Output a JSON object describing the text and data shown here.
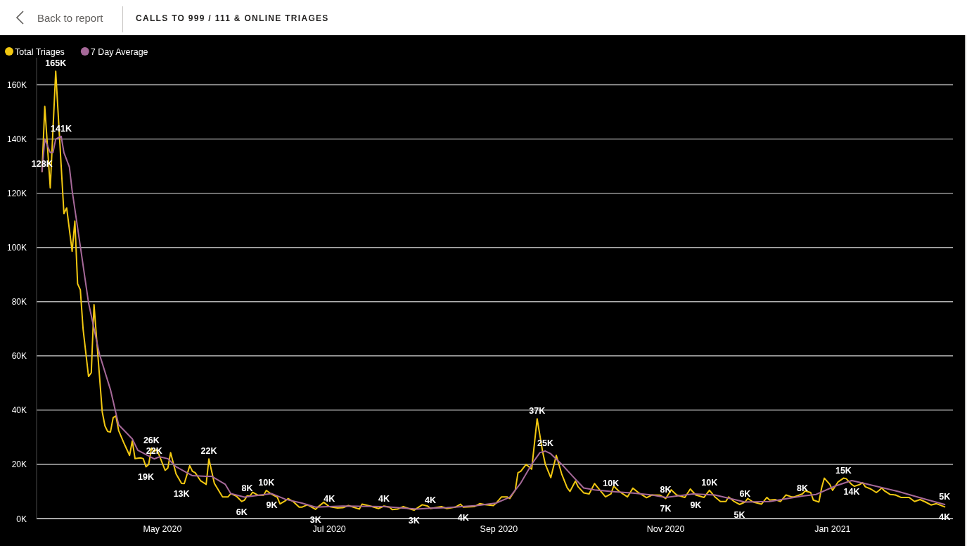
{
  "chart_data": {
    "type": "line",
    "title": "CALLS TO 999 / 111 & ONLINE TRIAGES",
    "annotations": [
      "Back to report",
      {
        "text": "165K",
        "x": "2020-03-23",
        "y": 165000
      },
      {
        "text": "141K",
        "x": "2020-03-25",
        "y": 141000
      },
      {
        "text": "128K",
        "x": "2020-03-18",
        "y": 128000
      },
      {
        "text": "26K",
        "x": "2020-04-27",
        "y": 26000
      },
      {
        "text": "22K",
        "x": "2020-04-28",
        "y": 22000
      },
      {
        "text": "19K",
        "x": "2020-04-25",
        "y": 19100
      },
      {
        "text": "13K",
        "x": "2020-05-08",
        "y": 13000
      },
      {
        "text": "22K",
        "x": "2020-05-18",
        "y": 22000
      },
      {
        "text": "6K",
        "x": "2020-05-30",
        "y": 6300
      },
      {
        "text": "8K",
        "x": "2020-06-01",
        "y": 8400
      },
      {
        "text": "10K",
        "x": "2020-06-08",
        "y": 10400
      },
      {
        "text": "9K",
        "x": "2020-06-10",
        "y": 8900
      },
      {
        "text": "3K",
        "x": "2020-06-26",
        "y": 3400
      },
      {
        "text": "4K",
        "x": "2020-07-01",
        "y": 4400
      },
      {
        "text": "4K",
        "x": "2020-07-21",
        "y": 4400
      },
      {
        "text": "3K",
        "x": "2020-08-01",
        "y": 3100
      },
      {
        "text": "4K",
        "x": "2020-08-07",
        "y": 3800
      },
      {
        "text": "4K",
        "x": "2020-08-19",
        "y": 4200
      },
      {
        "text": "37K",
        "x": "2020-09-15",
        "y": 36800
      },
      {
        "text": "25K",
        "x": "2020-09-18",
        "y": 24900
      },
      {
        "text": "10K",
        "x": "2020-10-12",
        "y": 10000
      },
      {
        "text": "8K",
        "x": "2020-11-01",
        "y": 7800
      },
      {
        "text": "7K",
        "x": "2020-11-01",
        "y": 7400
      },
      {
        "text": "9K",
        "x": "2020-11-12",
        "y": 8700
      },
      {
        "text": "10K",
        "x": "2020-11-17",
        "y": 10400
      },
      {
        "text": "5K",
        "x": "2020-11-28",
        "y": 5200
      },
      {
        "text": "6K",
        "x": "2020-11-30",
        "y": 6100
      },
      {
        "text": "8K",
        "x": "2020-12-21",
        "y": 8300
      },
      {
        "text": "15K",
        "x": "2021-01-05",
        "y": 14900
      },
      {
        "text": "14K",
        "x": "2021-01-08",
        "y": 13800
      },
      {
        "text": "4K",
        "x": "2021-02-11",
        "y": 4300
      },
      {
        "text": "5K",
        "x": "2021-02-11",
        "y": 5200
      }
    ],
    "xlim": [
      "2020-03-16",
      "2021-02-14"
    ],
    "xticks": [
      {
        "value": "2020-05-01",
        "label": "May 2020"
      },
      {
        "value": "2020-07-01",
        "label": "Jul 2020"
      },
      {
        "value": "2020-09-01",
        "label": "Sep 2020"
      },
      {
        "value": "2020-11-01",
        "label": "Nov 2020"
      },
      {
        "value": "2021-01-01",
        "label": "Jan 2021"
      }
    ],
    "ylim": [
      0,
      170000
    ],
    "yticks": [
      {
        "value": 0,
        "label": "0K"
      },
      {
        "value": 20000,
        "label": "20K"
      },
      {
        "value": 40000,
        "label": "40K"
      },
      {
        "value": 60000,
        "label": "60K"
      },
      {
        "value": 80000,
        "label": "80K"
      },
      {
        "value": 100000,
        "label": "100K"
      },
      {
        "value": 120000,
        "label": "120K"
      },
      {
        "value": 140000,
        "label": "140K"
      },
      {
        "value": 160000,
        "label": "160K"
      }
    ],
    "grid": "y",
    "legend": "top left",
    "marker": "none",
    "line_style": "solid",
    "series": [
      {
        "name": "Total Triages",
        "color": "#f2c811",
        "x": [
          "2020-03-18",
          "2020-03-19",
          "2020-03-21",
          "2020-03-23",
          "2020-03-25",
          "2020-03-26",
          "2020-03-27",
          "2020-03-29",
          "2020-03-30",
          "2020-03-31",
          "2020-04-01",
          "2020-04-02",
          "2020-04-04",
          "2020-04-05",
          "2020-04-06",
          "2020-04-09",
          "2020-04-10",
          "2020-04-11",
          "2020-04-12",
          "2020-04-13",
          "2020-04-14",
          "2020-04-15",
          "2020-04-17",
          "2020-04-19",
          "2020-04-20",
          "2020-04-21",
          "2020-04-23",
          "2020-04-24",
          "2020-04-25",
          "2020-04-26",
          "2020-04-27",
          "2020-04-28",
          "2020-04-29",
          "2020-05-02",
          "2020-05-03",
          "2020-05-04",
          "2020-05-06",
          "2020-05-08",
          "2020-05-09",
          "2020-05-11",
          "2020-05-12",
          "2020-05-13",
          "2020-05-15",
          "2020-05-17",
          "2020-05-18",
          "2020-05-20",
          "2020-05-23",
          "2020-05-25",
          "2020-05-26",
          "2020-05-28",
          "2020-05-30",
          "2020-05-31",
          "2020-06-01",
          "2020-06-02",
          "2020-06-03",
          "2020-06-05",
          "2020-06-07",
          "2020-06-08",
          "2020-06-10",
          "2020-06-12",
          "2020-06-13",
          "2020-06-15",
          "2020-06-16",
          "2020-06-18",
          "2020-06-20",
          "2020-06-21",
          "2020-06-23",
          "2020-06-26",
          "2020-06-27",
          "2020-06-29",
          "2020-07-01",
          "2020-07-04",
          "2020-07-06",
          "2020-07-08",
          "2020-07-12",
          "2020-07-13",
          "2020-07-16",
          "2020-07-19",
          "2020-07-21",
          "2020-07-23",
          "2020-07-24",
          "2020-07-26",
          "2020-07-28",
          "2020-07-30",
          "2020-08-01",
          "2020-08-04",
          "2020-08-06",
          "2020-08-07",
          "2020-08-11",
          "2020-08-13",
          "2020-08-16",
          "2020-08-18",
          "2020-08-19",
          "2020-08-23",
          "2020-08-25",
          "2020-08-27",
          "2020-08-30",
          "2020-08-31",
          "2020-09-02",
          "2020-09-04",
          "2020-09-05",
          "2020-09-07",
          "2020-09-08",
          "2020-09-09",
          "2020-09-11",
          "2020-09-12",
          "2020-09-13",
          "2020-09-15",
          "2020-09-17",
          "2020-09-18",
          "2020-09-20",
          "2020-09-22",
          "2020-09-24",
          "2020-09-26",
          "2020-09-27",
          "2020-09-29",
          "2020-09-30",
          "2020-10-02",
          "2020-10-04",
          "2020-10-06",
          "2020-10-08",
          "2020-10-10",
          "2020-10-12",
          "2020-10-13",
          "2020-10-15",
          "2020-10-18",
          "2020-10-20",
          "2020-10-22",
          "2020-10-25",
          "2020-10-27",
          "2020-10-30",
          "2020-11-01",
          "2020-11-03",
          "2020-11-05",
          "2020-11-08",
          "2020-11-10",
          "2020-11-12",
          "2020-11-15",
          "2020-11-17",
          "2020-11-19",
          "2020-11-21",
          "2020-11-23",
          "2020-11-24",
          "2020-11-26",
          "2020-11-28",
          "2020-11-30",
          "2020-12-01",
          "2020-12-03",
          "2020-12-06",
          "2020-12-08",
          "2020-12-09",
          "2020-12-11",
          "2020-12-13",
          "2020-12-15",
          "2020-12-17",
          "2020-12-18",
          "2020-12-21",
          "2020-12-22",
          "2020-12-24",
          "2020-12-25",
          "2020-12-27",
          "2020-12-28",
          "2020-12-29",
          "2020-12-31",
          "2021-01-01",
          "2021-01-03",
          "2021-01-05",
          "2021-01-06",
          "2021-01-08",
          "2021-01-09",
          "2021-01-11",
          "2021-01-12",
          "2021-01-13",
          "2021-01-15",
          "2021-01-17",
          "2021-01-18",
          "2021-01-19",
          "2021-01-20",
          "2021-01-22",
          "2021-01-24",
          "2021-01-26",
          "2021-01-29",
          "2021-01-31",
          "2021-02-02",
          "2021-02-04",
          "2021-02-06",
          "2021-02-08",
          "2021-02-11"
        ],
        "values": [
          128000,
          152000,
          122000,
          165000,
          130000,
          112500,
          114600,
          98600,
          109700,
          86600,
          84400,
          70000,
          52400,
          53800,
          78900,
          39400,
          34200,
          32100,
          31900,
          37200,
          37900,
          32500,
          27700,
          23300,
          28600,
          22100,
          22400,
          22100,
          19100,
          20000,
          26000,
          24700,
          25500,
          17800,
          18700,
          24300,
          16500,
          13000,
          12900,
          19500,
          17400,
          16900,
          13900,
          12600,
          22000,
          13000,
          8000,
          8000,
          9200,
          8300,
          6300,
          6800,
          8400,
          8300,
          9700,
          8600,
          8600,
          10400,
          8900,
          7900,
          5400,
          6600,
          7400,
          6100,
          4200,
          4200,
          5100,
          3400,
          4400,
          6000,
          4400,
          3900,
          4000,
          4800,
          3500,
          5300,
          4600,
          3700,
          4600,
          4200,
          3300,
          3500,
          4400,
          3700,
          3100,
          5100,
          4600,
          3700,
          4400,
          3700,
          4200,
          5300,
          4200,
          4400,
          5500,
          5100,
          4800,
          5700,
          8000,
          8000,
          7400,
          10500,
          16900,
          17400,
          20000,
          19100,
          18200,
          36800,
          24700,
          20000,
          15100,
          23300,
          16400,
          11300,
          10000,
          13800,
          11700,
          9500,
          9100,
          12900,
          10400,
          8000,
          9100,
          12000,
          10000,
          8000,
          11200,
          9600,
          7700,
          8700,
          8600,
          7400,
          10600,
          8700,
          7800,
          10900,
          8700,
          7800,
          10400,
          8000,
          6300,
          6300,
          8000,
          6300,
          5200,
          6100,
          7400,
          6100,
          5300,
          7800,
          6800,
          7000,
          6300,
          8700,
          8000,
          8000,
          9100,
          10200,
          9600,
          6800,
          6100,
          11300,
          14900,
          12600,
          10400,
          13500,
          14900,
          14700,
          12600,
          11900,
          12600,
          13200,
          11700,
          10900,
          9600,
          10400,
          11300,
          10200,
          8900,
          8700,
          7800,
          7800,
          6300,
          7000,
          6100,
          5000,
          5500,
          4300
        ]
      },
      {
        "name": "7 Day Average",
        "color": "#a66999",
        "x": [
          "2020-03-18",
          "2020-03-19",
          "2020-03-21",
          "2020-03-22",
          "2020-03-23",
          "2020-03-25",
          "2020-03-26",
          "2020-03-28",
          "2020-03-29",
          "2020-04-01",
          "2020-04-04",
          "2020-04-08",
          "2020-04-12",
          "2020-04-15",
          "2020-04-20",
          "2020-04-22",
          "2020-04-28",
          "2020-04-30",
          "2020-05-03",
          "2020-05-06",
          "2020-05-12",
          "2020-05-17",
          "2020-05-19",
          "2020-05-24",
          "2020-05-26",
          "2020-05-31",
          "2020-06-06",
          "2020-06-10",
          "2020-06-15",
          "2020-06-21",
          "2020-06-26",
          "2020-07-01",
          "2020-07-06",
          "2020-07-21",
          "2020-08-02",
          "2020-08-07",
          "2020-08-13",
          "2020-08-24",
          "2020-08-31",
          "2020-09-05",
          "2020-09-09",
          "2020-09-13",
          "2020-09-16",
          "2020-09-18",
          "2020-09-20",
          "2020-09-24",
          "2020-09-28",
          "2020-10-02",
          "2020-10-06",
          "2020-10-12",
          "2020-10-20",
          "2020-10-27",
          "2020-11-01",
          "2020-11-11",
          "2020-11-19",
          "2020-11-30",
          "2020-12-09",
          "2020-12-21",
          "2020-12-26",
          "2021-01-02",
          "2021-01-08",
          "2021-01-12",
          "2021-01-25",
          "2021-02-03",
          "2021-02-11"
        ],
        "values": [
          128000,
          140000,
          135000,
          135000,
          140000,
          141000,
          135000,
          129700,
          121000,
          100400,
          79600,
          60600,
          47600,
          34600,
          29400,
          25200,
          22000,
          22800,
          22100,
          19100,
          15800,
          15600,
          15600,
          12600,
          9200,
          7900,
          8700,
          9200,
          7100,
          5700,
          4200,
          4400,
          4600,
          4400,
          3500,
          3800,
          4000,
          4800,
          5700,
          7900,
          13100,
          20000,
          24300,
          24900,
          23900,
          20000,
          15600,
          11300,
          10600,
          10000,
          9400,
          8700,
          7800,
          9100,
          8700,
          6100,
          6300,
          8300,
          8900,
          12000,
          14000,
          13100,
          10000,
          7400,
          5200
        ]
      }
    ]
  }
}
